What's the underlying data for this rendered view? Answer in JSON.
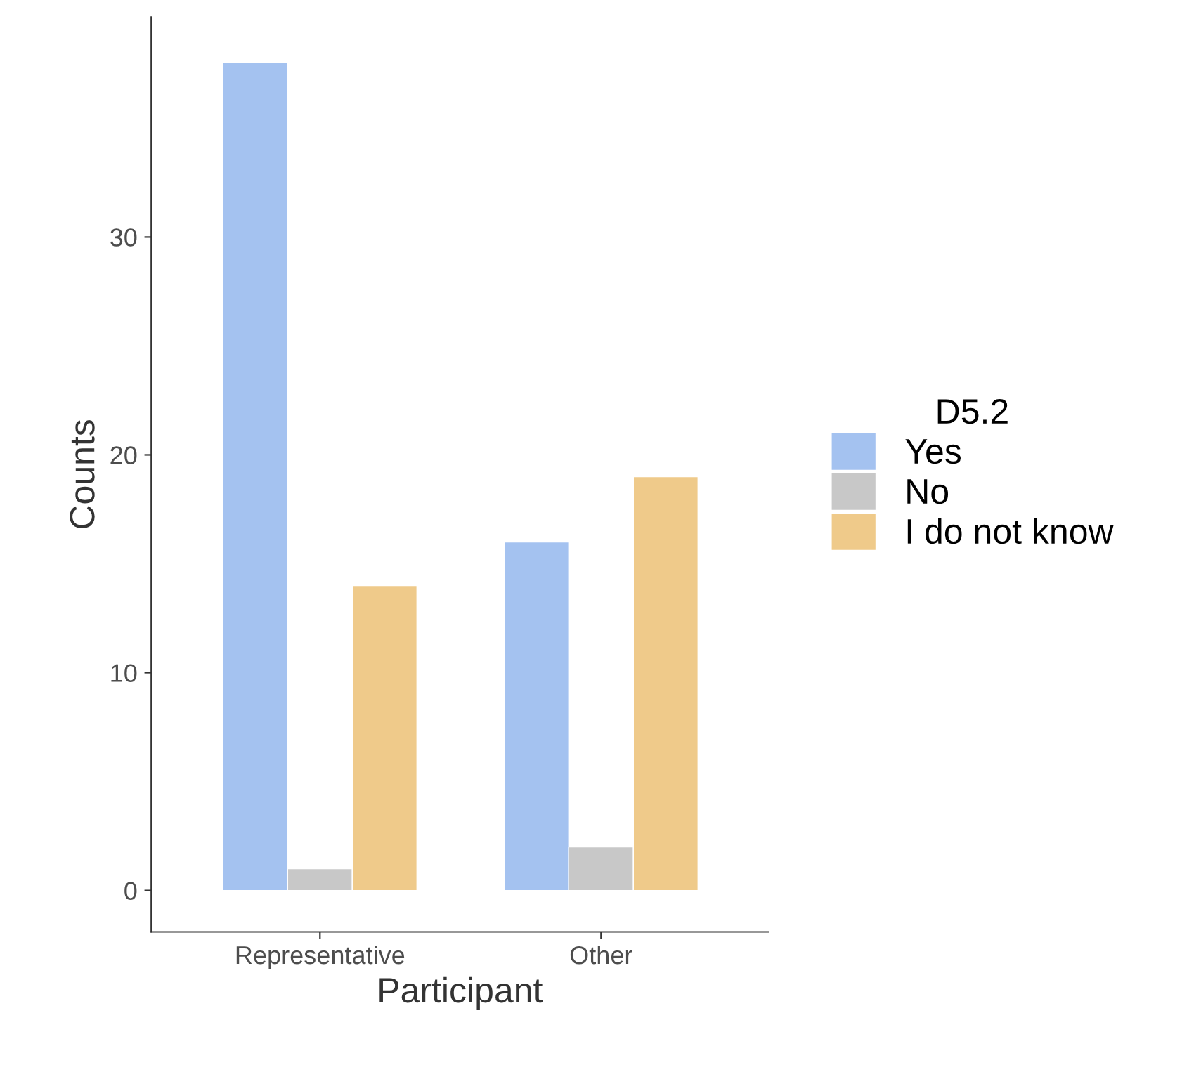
{
  "chart_data": {
    "type": "bar",
    "xlabel": "Participant",
    "ylabel": "Counts",
    "legend_title": "D5.2",
    "categories": [
      "Representative",
      "Other"
    ],
    "series": [
      {
        "name": "Yes",
        "color": "#a4c2f0",
        "values": [
          38,
          16
        ]
      },
      {
        "name": "No",
        "color": "#c8c8c8",
        "values": [
          1,
          2
        ]
      },
      {
        "name": "I do not know",
        "color": "#efca8a",
        "values": [
          14,
          19
        ]
      }
    ],
    "ylim": [
      -1.9,
      40.1
    ],
    "yticks": [
      0,
      10,
      20,
      30
    ],
    "grid": false,
    "legend": "right"
  }
}
